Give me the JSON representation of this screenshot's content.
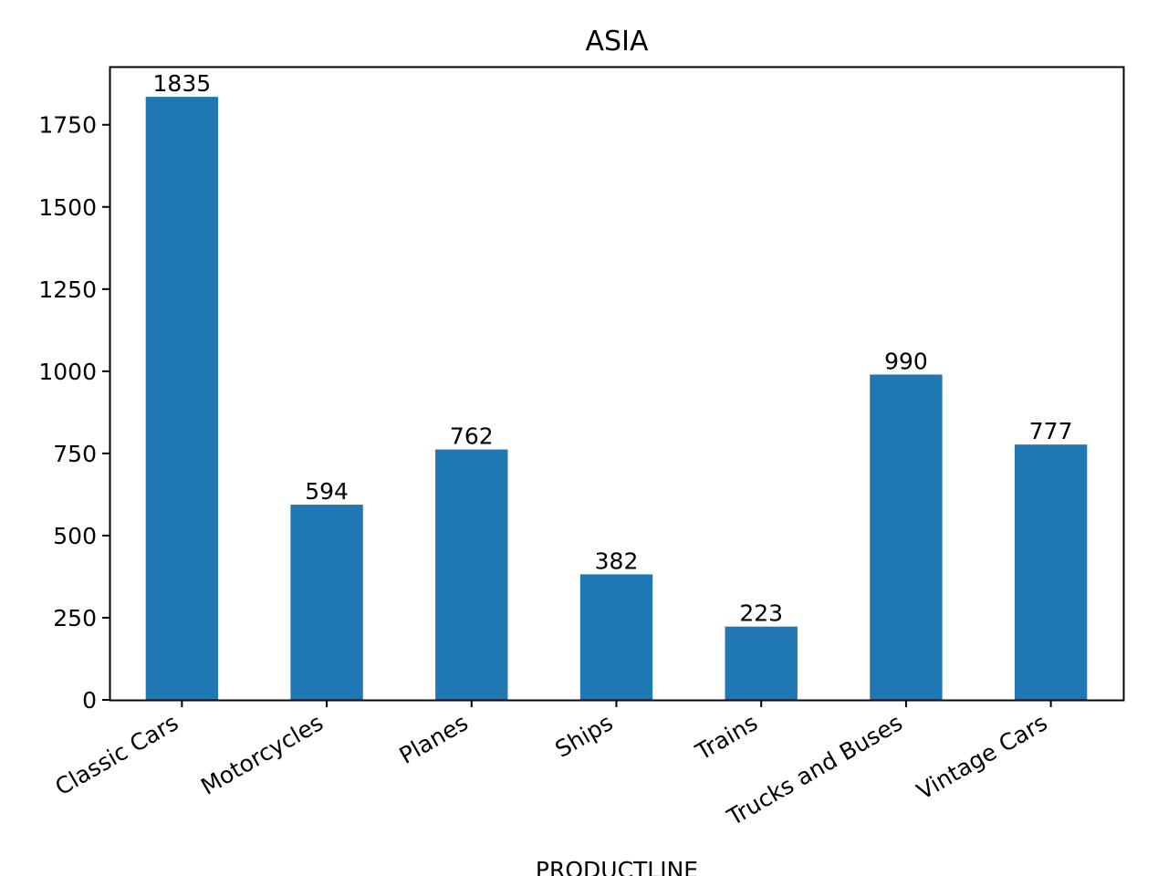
{
  "chart_data": {
    "type": "bar",
    "title": "ASIA",
    "xlabel": "PRODUCTLINE",
    "ylabel": "",
    "categories": [
      "Classic Cars",
      "Motorcycles",
      "Planes",
      "Ships",
      "Trains",
      "Trucks and Buses",
      "Vintage Cars"
    ],
    "values": [
      1835,
      594,
      762,
      382,
      223,
      990,
      777
    ],
    "value_labels": [
      "1835",
      "594",
      "762",
      "382",
      "223",
      "990",
      "777"
    ],
    "ylim": [
      0,
      1927
    ],
    "yticks": [
      0,
      250,
      500,
      750,
      1000,
      1250,
      1500,
      1750
    ],
    "ytick_labels": [
      "0",
      "250",
      "500",
      "750",
      "1000",
      "1250",
      "1500",
      "1750"
    ],
    "bar_color": "#1f77b4",
    "grid": false,
    "legend": "none"
  }
}
